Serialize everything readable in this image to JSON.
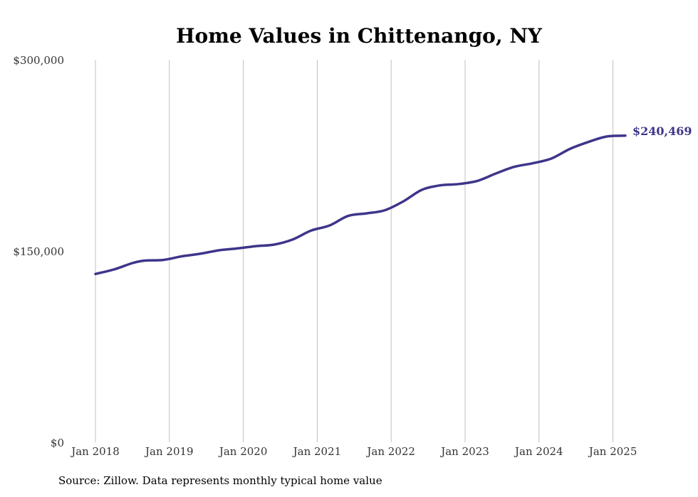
{
  "source_note": "Source: Zillow. Data represents monthly typical home value",
  "colors": {
    "line": "#3d358b",
    "grid": "#c0c0c0",
    "text": "#333333"
  },
  "chart_data": {
    "type": "line",
    "title": "Home Values in Chittenango, NY",
    "xlabel": "",
    "ylabel": "",
    "ylim": [
      0,
      300000
    ],
    "yticks": [
      {
        "value": 0,
        "label": "$0"
      },
      {
        "value": 150000,
        "label": "$150,000"
      },
      {
        "value": 300000,
        "label": "$300,000"
      }
    ],
    "xticks": [
      {
        "value": "2018-01",
        "label": "Jan 2018"
      },
      {
        "value": "2019-01",
        "label": "Jan 2019"
      },
      {
        "value": "2020-01",
        "label": "Jan 2020"
      },
      {
        "value": "2021-01",
        "label": "Jan 2021"
      },
      {
        "value": "2022-01",
        "label": "Jan 2022"
      },
      {
        "value": "2023-01",
        "label": "Jan 2023"
      },
      {
        "value": "2024-01",
        "label": "Jan 2024"
      },
      {
        "value": "2025-01",
        "label": "Jan 2025"
      }
    ],
    "grid": "vertical",
    "end_label": "$240,469",
    "series": [
      {
        "points": [
          [
            "2018-01",
            132000
          ],
          [
            "2018-04",
            135500
          ],
          [
            "2018-07",
            140500
          ],
          [
            "2018-09",
            142500
          ],
          [
            "2018-12",
            143000
          ],
          [
            "2019-03",
            145800
          ],
          [
            "2019-06",
            147800
          ],
          [
            "2019-09",
            150500
          ],
          [
            "2019-12",
            152000
          ],
          [
            "2020-03",
            153800
          ],
          [
            "2020-06",
            155000
          ],
          [
            "2020-09",
            159000
          ],
          [
            "2020-12",
            166000
          ],
          [
            "2021-03",
            170000
          ],
          [
            "2021-06",
            177500
          ],
          [
            "2021-09",
            179500
          ],
          [
            "2021-12",
            182000
          ],
          [
            "2022-03",
            189000
          ],
          [
            "2022-06",
            198000
          ],
          [
            "2022-09",
            201500
          ],
          [
            "2022-12",
            202500
          ],
          [
            "2023-03",
            205000
          ],
          [
            "2023-06",
            210800
          ],
          [
            "2023-09",
            216000
          ],
          [
            "2023-12",
            218800
          ],
          [
            "2024-03",
            222500
          ],
          [
            "2024-06",
            230000
          ],
          [
            "2024-09",
            235500
          ],
          [
            "2024-12",
            239800
          ],
          [
            "2025-03",
            240469
          ]
        ]
      }
    ]
  }
}
